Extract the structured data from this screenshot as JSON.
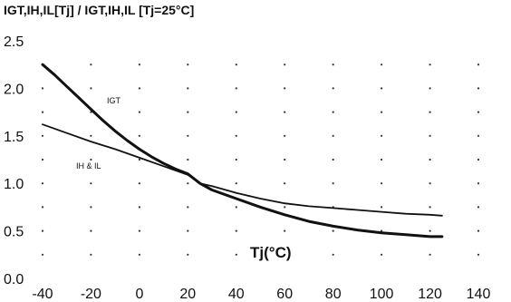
{
  "chart_data": {
    "type": "line",
    "title": "IGT,IH,IL[Tj] / IGT,IH,IL [Tj=25°C]",
    "xlabel": "Tj(°C)",
    "ylabel": "",
    "xlim": [
      -40,
      140
    ],
    "ylim": [
      0,
      2.5
    ],
    "x_ticks": [
      "-40",
      "-20",
      "0",
      "20",
      "40",
      "60",
      "80",
      "100",
      "120",
      "140"
    ],
    "y_ticks": [
      "0.0",
      "0.5",
      "1.0",
      "1.5",
      "2.0",
      "2.5"
    ],
    "grid": "dotted",
    "series": [
      {
        "name": "IGT",
        "x": [
          -40,
          -35,
          -30,
          -25,
          -20,
          -15,
          -10,
          -5,
          0,
          5,
          10,
          15,
          20,
          25,
          30,
          40,
          50,
          60,
          70,
          80,
          90,
          100,
          110,
          120,
          125
        ],
        "y": [
          2.25,
          2.14,
          2.02,
          1.9,
          1.78,
          1.66,
          1.55,
          1.45,
          1.36,
          1.28,
          1.21,
          1.15,
          1.1,
          1.0,
          0.93,
          0.84,
          0.75,
          0.67,
          0.6,
          0.55,
          0.51,
          0.48,
          0.46,
          0.44,
          0.44
        ]
      },
      {
        "name": "IH & IL",
        "x": [
          -40,
          -30,
          -20,
          -10,
          0,
          10,
          20,
          25,
          30,
          40,
          50,
          60,
          70,
          80,
          90,
          100,
          110,
          120,
          125
        ],
        "y": [
          1.62,
          1.53,
          1.44,
          1.36,
          1.27,
          1.18,
          1.09,
          1.0,
          0.97,
          0.9,
          0.84,
          0.79,
          0.76,
          0.74,
          0.72,
          0.7,
          0.68,
          0.67,
          0.66
        ]
      }
    ]
  }
}
